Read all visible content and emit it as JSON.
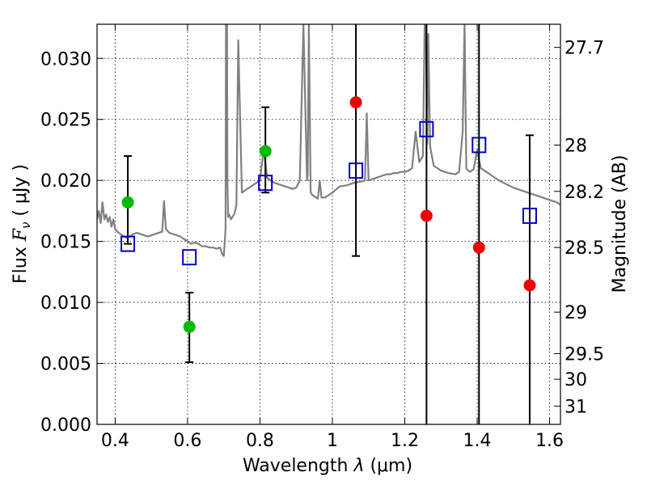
{
  "chart_data": {
    "type": "scatter",
    "title": "",
    "xlabel": "Wavelength  λ (μm)",
    "ylabel": "Flux  F_ν  ( μJy )",
    "ylabel_right": "Magnitude (AB)",
    "xlim": [
      0.35,
      1.63
    ],
    "ylim": [
      0.0,
      0.0328
    ],
    "grid": true,
    "x_ticks": [
      0.4,
      0.6,
      0.8,
      1.0,
      1.2,
      1.4,
      1.6
    ],
    "x_tick_labels": [
      "0.4",
      "0.6",
      "0.8",
      "1",
      "1.2",
      "1.4",
      "1.6"
    ],
    "y_ticks": [
      0.0,
      0.005,
      0.01,
      0.015,
      0.02,
      0.025,
      0.03
    ],
    "y_tick_labels": [
      "0.000",
      "0.005",
      "0.010",
      "0.015",
      "0.020",
      "0.025",
      "0.030"
    ],
    "right_ticks": [
      {
        "flux": 0.0309,
        "label": "27.7"
      },
      {
        "flux": 0.0229,
        "label": "28"
      },
      {
        "flux": 0.0191,
        "label": "28.2"
      },
      {
        "flux": 0.0145,
        "label": "28.5"
      },
      {
        "flux": 0.0092,
        "label": "29"
      },
      {
        "flux": 0.0058,
        "label": "29.5"
      },
      {
        "flux": 0.0037,
        "label": "30"
      },
      {
        "flux": 0.0015,
        "label": "31"
      }
    ],
    "series": [
      {
        "marker": "line",
        "color": "#808080",
        "x": [
          0.35,
          0.355,
          0.36,
          0.365,
          0.37,
          0.375,
          0.38,
          0.385,
          0.39,
          0.395,
          0.4,
          0.41,
          0.42,
          0.43,
          0.44,
          0.45,
          0.46,
          0.47,
          0.48,
          0.49,
          0.5,
          0.51,
          0.52,
          0.53,
          0.535,
          0.54,
          0.55,
          0.56,
          0.57,
          0.58,
          0.59,
          0.6,
          0.61,
          0.62,
          0.63,
          0.64,
          0.65,
          0.66,
          0.67,
          0.68,
          0.69,
          0.695,
          0.7,
          0.705,
          0.706,
          0.709,
          0.71,
          0.712,
          0.715,
          0.72,
          0.73,
          0.735,
          0.74,
          0.75,
          0.76,
          0.77,
          0.78,
          0.79,
          0.8,
          0.81,
          0.82,
          0.83,
          0.84,
          0.85,
          0.86,
          0.87,
          0.88,
          0.89,
          0.9,
          0.91,
          0.92,
          0.93,
          0.932,
          0.935,
          0.94,
          0.945,
          0.95,
          0.955,
          0.96,
          0.965,
          0.97,
          0.98,
          0.99,
          1.0,
          1.02,
          1.04,
          1.06,
          1.08,
          1.09,
          1.095,
          1.1,
          1.11,
          1.12,
          1.13,
          1.14,
          1.15,
          1.16,
          1.17,
          1.18,
          1.19,
          1.2,
          1.21,
          1.22,
          1.23,
          1.24,
          1.25,
          1.255,
          1.258,
          1.262,
          1.265,
          1.27,
          1.28,
          1.3,
          1.32,
          1.34,
          1.35,
          1.36,
          1.365,
          1.37,
          1.375,
          1.38,
          1.39,
          1.4,
          1.41,
          1.42,
          1.43,
          1.44,
          1.46,
          1.48,
          1.5,
          1.52,
          1.54,
          1.56,
          1.58,
          1.6,
          1.62,
          1.63
        ],
        "y": [
          0.0168,
          0.0175,
          0.0165,
          0.0182,
          0.0168,
          0.0172,
          0.0166,
          0.017,
          0.0162,
          0.0168,
          0.016,
          0.0157,
          0.0155,
          0.0153,
          0.0154,
          0.0156,
          0.0157,
          0.0156,
          0.0155,
          0.0154,
          0.0155,
          0.0156,
          0.0157,
          0.0158,
          0.0183,
          0.016,
          0.0157,
          0.0156,
          0.0155,
          0.0154,
          0.0152,
          0.015,
          0.0148,
          0.0149,
          0.0148,
          0.0146,
          0.0146,
          0.0145,
          0.0145,
          0.0144,
          0.0145,
          0.014,
          0.0138,
          0.016,
          0.0328,
          0.0328,
          0.02,
          0.017,
          0.0172,
          0.0168,
          0.0173,
          0.018,
          0.0315,
          0.019,
          0.0192,
          0.0194,
          0.0196,
          0.0198,
          0.02,
          0.0225,
          0.0202,
          0.02,
          0.0198,
          0.0197,
          0.0196,
          0.0195,
          0.0194,
          0.0193,
          0.0194,
          0.02,
          0.0328,
          0.02,
          0.0205,
          0.0328,
          0.019,
          0.0188,
          0.0187,
          0.0186,
          0.0185,
          0.02,
          0.0186,
          0.0186,
          0.0188,
          0.019,
          0.0195,
          0.0196,
          0.0198,
          0.0199,
          0.02,
          0.0255,
          0.02,
          0.0201,
          0.0202,
          0.0203,
          0.0204,
          0.0205,
          0.0205,
          0.0206,
          0.0206,
          0.0207,
          0.0207,
          0.0208,
          0.021,
          0.024,
          0.0215,
          0.022,
          0.0328,
          0.0328,
          0.023,
          0.032,
          0.0228,
          0.0212,
          0.0208,
          0.0206,
          0.0205,
          0.0207,
          0.024,
          0.0328,
          0.021,
          0.0208,
          0.0207,
          0.0209,
          0.0225,
          0.021,
          0.0208,
          0.0206,
          0.0204,
          0.02,
          0.0197,
          0.0194,
          0.0192,
          0.019,
          0.0188,
          0.0186,
          0.0184,
          0.0182,
          0.018
        ]
      },
      {
        "marker": "square-open",
        "color": "#0000cc",
        "x": [
          0.435,
          0.605,
          0.815,
          1.065,
          1.26,
          1.405,
          1.545
        ],
        "y": [
          0.0148,
          0.0137,
          0.0198,
          0.0208,
          0.0242,
          0.0229,
          0.0171
        ]
      },
      {
        "marker": "circle",
        "color": "#00bb00",
        "x": [
          0.435,
          0.605,
          0.815
        ],
        "y": [
          0.0182,
          0.008,
          0.0224
        ]
      },
      {
        "marker": "circle",
        "color": "#ee0000",
        "x": [
          1.065,
          1.26,
          1.405,
          1.545
        ],
        "y": [
          0.0264,
          0.0171,
          0.0145,
          0.0114
        ]
      }
    ],
    "error_bars": [
      {
        "x": 0.435,
        "low": 0.0148,
        "high": 0.022
      },
      {
        "x": 0.605,
        "low": 0.0051,
        "high": 0.0108
      },
      {
        "x": 0.815,
        "low": 0.019,
        "high": 0.026
      },
      {
        "x": 1.065,
        "low": 0.0138,
        "high": 0.0328
      },
      {
        "x": 1.26,
        "low": 0.0,
        "high": 0.0328
      },
      {
        "x": 1.405,
        "low": 0.0,
        "high": 0.0328
      },
      {
        "x": 1.545,
        "low": 0.0,
        "high": 0.0237
      }
    ]
  }
}
